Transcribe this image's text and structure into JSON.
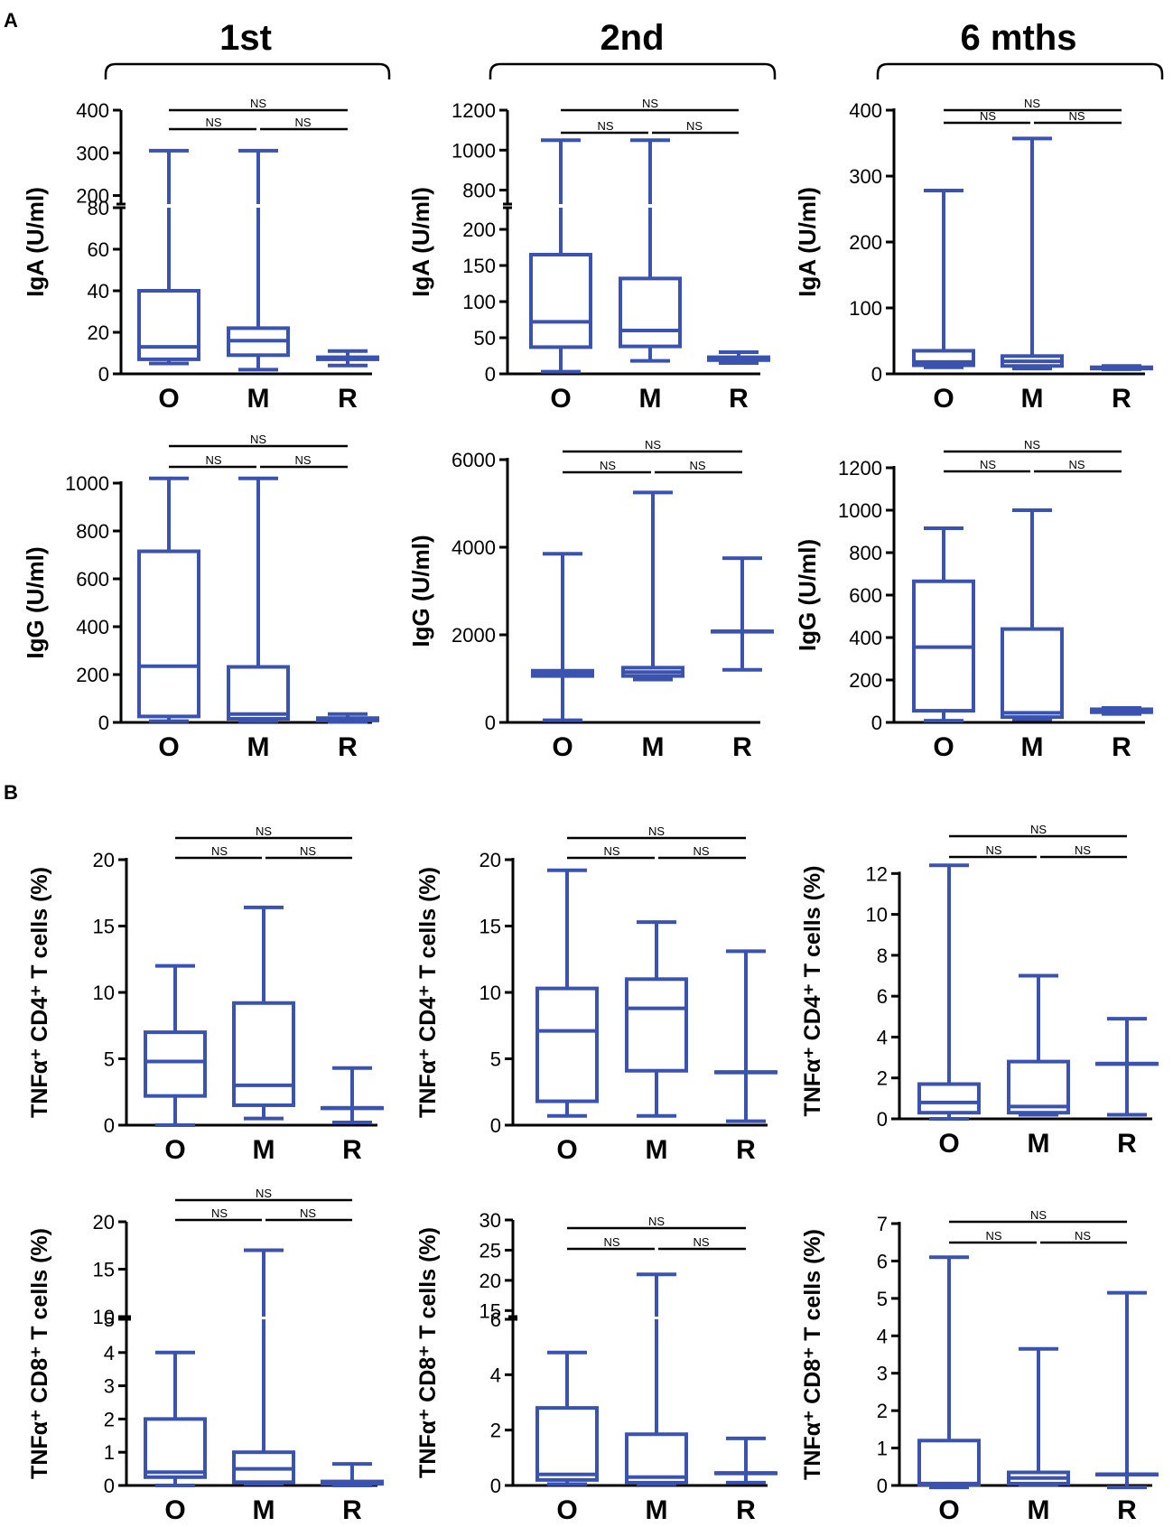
{
  "figure": {
    "panel_labels": [
      "A",
      "B"
    ],
    "column_titles": [
      "1st",
      "2nd",
      "6 mths"
    ],
    "colors": {
      "box": "#3a52b0",
      "axis": "#000000",
      "text": "#000000"
    }
  },
  "chart_data": [
    {
      "type": "boxplot",
      "panel": "A",
      "column": "1st",
      "ylabel": "IgA (U/ml)",
      "categories": [
        "O",
        "M",
        "R"
      ],
      "yticks_low": [
        "0",
        "20",
        "40",
        "60",
        "80"
      ],
      "yticks_high": [
        "200",
        "300",
        "400"
      ],
      "axis_break": true,
      "low_range": [
        0,
        80
      ],
      "high_range": [
        180,
        400
      ],
      "boxes": [
        {
          "min": 5,
          "q1": 7,
          "median": 13,
          "q3": 40,
          "max": 305
        },
        {
          "min": 2,
          "q1": 9,
          "median": 16,
          "q3": 22,
          "max": 305
        },
        {
          "min": 4,
          "q1": 7,
          "median": 7.5,
          "q3": 8,
          "max": 11
        }
      ],
      "significance": [
        "NS",
        "NS",
        "NS"
      ]
    },
    {
      "type": "boxplot",
      "panel": "A",
      "column": "2nd",
      "ylabel": "IgA (U/ml)",
      "categories": [
        "O",
        "M",
        "R"
      ],
      "yticks_low": [
        "0",
        "50",
        "100",
        "150",
        "200"
      ],
      "yticks_high": [
        "800",
        "1000",
        "1200"
      ],
      "axis_break": true,
      "low_range": [
        0,
        230
      ],
      "high_range": [
        730,
        1200
      ],
      "boxes": [
        {
          "min": 3,
          "q1": 37,
          "median": 72,
          "q3": 165,
          "max": 1050
        },
        {
          "min": 18,
          "q1": 38,
          "median": 60,
          "q3": 132,
          "max": 1050
        },
        {
          "min": 15,
          "q1": 19,
          "median": 21,
          "q3": 23,
          "max": 30
        }
      ],
      "significance": [
        "NS",
        "NS",
        "NS"
      ]
    },
    {
      "type": "boxplot",
      "panel": "A",
      "column": "6 mths",
      "ylabel": "IgA (U/ml)",
      "categories": [
        "O",
        "M",
        "R"
      ],
      "yticks": [
        "0",
        "100",
        "200",
        "300",
        "400"
      ],
      "axis_break": false,
      "range": [
        0,
        400
      ],
      "boxes": [
        {
          "min": 10,
          "q1": 13,
          "median": 18,
          "q3": 35,
          "max": 278
        },
        {
          "min": 8,
          "q1": 12,
          "median": 19,
          "q3": 27,
          "max": 357
        },
        {
          "min": 7,
          "q1": 8,
          "median": 9,
          "q3": 10,
          "max": 12
        }
      ],
      "significance": [
        "NS",
        "NS",
        "NS"
      ]
    },
    {
      "type": "boxplot",
      "panel": "A",
      "column": "1st",
      "ylabel": "IgG (U/ml)",
      "categories": [
        "O",
        "M",
        "R"
      ],
      "yticks": [
        "0",
        "200",
        "400",
        "600",
        "800",
        "1000"
      ],
      "axis_break": false,
      "range": [
        0,
        1000
      ],
      "boxes": [
        {
          "min": 5,
          "q1": 25,
          "median": 235,
          "q3": 715,
          "max": 1020
        },
        {
          "min": 5,
          "q1": 15,
          "median": 35,
          "q3": 232,
          "max": 1020
        },
        {
          "min": 2,
          "q1": 8,
          "median": 12,
          "q3": 18,
          "max": 35
        }
      ],
      "significance": [
        "NS",
        "NS",
        "NS"
      ]
    },
    {
      "type": "boxplot",
      "panel": "A",
      "column": "2nd",
      "ylabel": "IgG (U/ml)",
      "categories": [
        "O",
        "M",
        "R"
      ],
      "yticks": [
        "0",
        "2000",
        "4000",
        "6000"
      ],
      "axis_break": false,
      "range": [
        0,
        6000
      ],
      "boxes": [
        {
          "min": 50,
          "q1": 1060,
          "median": 1110,
          "q3": 1180,
          "max": 3850
        },
        {
          "min": 980,
          "q1": 1060,
          "median": 1150,
          "q3": 1250,
          "max": 5250
        },
        {
          "min": 1200,
          "q1": 2080,
          "median": 2080,
          "q3": 2080,
          "max": 3750
        }
      ],
      "significance": [
        "NS",
        "NS",
        "NS"
      ]
    },
    {
      "type": "boxplot",
      "panel": "A",
      "column": "6 mths",
      "ylabel": "IgG (U/ml)",
      "categories": [
        "O",
        "M",
        "R"
      ],
      "yticks": [
        "0",
        "200",
        "400",
        "600",
        "800",
        "1000",
        "1200"
      ],
      "axis_break": false,
      "range": [
        0,
        1200
      ],
      "boxes": [
        {
          "min": 8,
          "q1": 55,
          "median": 355,
          "q3": 665,
          "max": 915
        },
        {
          "min": 15,
          "q1": 25,
          "median": 45,
          "q3": 440,
          "max": 1000
        },
        {
          "min": 40,
          "q1": 48,
          "median": 55,
          "q3": 62,
          "max": 68
        }
      ],
      "significance": [
        "NS",
        "NS",
        "NS"
      ]
    },
    {
      "type": "boxplot",
      "panel": "B",
      "column": "1st",
      "ylabel": "TNFα⁺ CD4⁺ T cells (%)",
      "categories": [
        "O",
        "M",
        "R"
      ],
      "yticks": [
        "0",
        "5",
        "10",
        "15",
        "20"
      ],
      "axis_break": false,
      "range": [
        0,
        20
      ],
      "boxes": [
        {
          "min": 0,
          "q1": 2.2,
          "median": 4.8,
          "q3": 7.0,
          "max": 12.0
        },
        {
          "min": 0.5,
          "q1": 1.5,
          "median": 3.0,
          "q3": 9.2,
          "max": 16.4
        },
        {
          "min": 0.2,
          "q1": 1.3,
          "median": 1.3,
          "q3": 1.3,
          "max": 4.3
        }
      ],
      "significance": [
        "NS",
        "NS",
        "NS"
      ]
    },
    {
      "type": "boxplot",
      "panel": "B",
      "column": "2nd",
      "ylabel": "TNFα⁺ CD4⁺ T cells (%)",
      "categories": [
        "O",
        "M",
        "R"
      ],
      "yticks": [
        "0",
        "5",
        "10",
        "15",
        "20"
      ],
      "axis_break": false,
      "range": [
        0,
        20
      ],
      "boxes": [
        {
          "min": 0.7,
          "q1": 1.8,
          "median": 7.1,
          "q3": 10.3,
          "max": 19.2
        },
        {
          "min": 0.7,
          "q1": 4.1,
          "median": 8.8,
          "q3": 11.0,
          "max": 15.3
        },
        {
          "min": 0.3,
          "q1": 4.0,
          "median": 4.0,
          "q3": 4.0,
          "max": 13.1
        }
      ],
      "significance": [
        "NS",
        "NS",
        "NS"
      ]
    },
    {
      "type": "boxplot",
      "panel": "B",
      "column": "6 mths",
      "ylabel": "TNFα⁺ CD4⁺ T cells (%)",
      "categories": [
        "O",
        "M",
        "R"
      ],
      "yticks": [
        "0",
        "2",
        "4",
        "6",
        "8",
        "10",
        "12"
      ],
      "axis_break": false,
      "range": [
        0,
        12.5
      ],
      "boxes": [
        {
          "min": 0,
          "q1": 0.3,
          "median": 0.8,
          "q3": 1.7,
          "max": 12.4
        },
        {
          "min": 0.2,
          "q1": 0.3,
          "median": 0.6,
          "q3": 2.8,
          "max": 7.0
        },
        {
          "min": 0.2,
          "q1": 2.7,
          "median": 2.7,
          "q3": 2.7,
          "max": 4.9
        }
      ],
      "significance": [
        "NS",
        "NS",
        "NS"
      ]
    },
    {
      "type": "boxplot",
      "panel": "B",
      "column": "1st",
      "ylabel": "TNFα⁺ CD8⁺ T cells (%)",
      "categories": [
        "O",
        "M",
        "R"
      ],
      "yticks_low": [
        "0",
        "1",
        "2",
        "3",
        "4",
        "5"
      ],
      "yticks_high": [
        "10",
        "15",
        "20"
      ],
      "axis_break": true,
      "low_range": [
        0,
        5
      ],
      "high_range": [
        10,
        20
      ],
      "boxes": [
        {
          "min": 0,
          "q1": 0.25,
          "median": 0.4,
          "q3": 2.0,
          "max": 4.0
        },
        {
          "min": 0.05,
          "q1": 0.1,
          "median": 0.5,
          "q3": 1.0,
          "max": 17.0
        },
        {
          "min": 0,
          "q1": 0.05,
          "median": 0.1,
          "q3": 0.12,
          "max": 0.65
        }
      ],
      "significance": [
        "NS",
        "NS",
        "NS"
      ]
    },
    {
      "type": "boxplot",
      "panel": "B",
      "column": "2nd",
      "ylabel": "TNFα⁺ CD8⁺ T cells (%)",
      "categories": [
        "O",
        "M",
        "R"
      ],
      "yticks_low": [
        "0",
        "2",
        "4",
        "6"
      ],
      "yticks_high": [
        "15",
        "20",
        "25",
        "30"
      ],
      "axis_break": true,
      "low_range": [
        0,
        6
      ],
      "high_range": [
        14,
        30
      ],
      "boxes": [
        {
          "min": 0.05,
          "q1": 0.2,
          "median": 0.4,
          "q3": 2.8,
          "max": 4.8
        },
        {
          "min": 0.05,
          "q1": 0.1,
          "median": 0.3,
          "q3": 1.85,
          "max": 21.0
        },
        {
          "min": 0.1,
          "q1": 0.45,
          "median": 0.45,
          "q3": 0.45,
          "max": 1.7
        }
      ],
      "significance": [
        "NS",
        "NS",
        "NS"
      ]
    },
    {
      "type": "boxplot",
      "panel": "B",
      "column": "6 mths",
      "ylabel": "TNFα⁺ CD8⁺ T cells (%)",
      "categories": [
        "O",
        "M",
        "R"
      ],
      "yticks": [
        "0",
        "1",
        "2",
        "3",
        "4",
        "5",
        "6",
        "7"
      ],
      "axis_break": false,
      "range": [
        0,
        7
      ],
      "boxes": [
        {
          "min": -0.05,
          "q1": 0.02,
          "median": 0.05,
          "q3": 1.2,
          "max": 6.1
        },
        {
          "min": 0.02,
          "q1": 0.05,
          "median": 0.2,
          "q3": 0.35,
          "max": 3.65
        },
        {
          "min": -0.05,
          "q1": 0.3,
          "median": 0.3,
          "q3": 0.3,
          "max": 5.15
        }
      ],
      "significance": [
        "NS",
        "NS",
        "NS"
      ]
    }
  ]
}
